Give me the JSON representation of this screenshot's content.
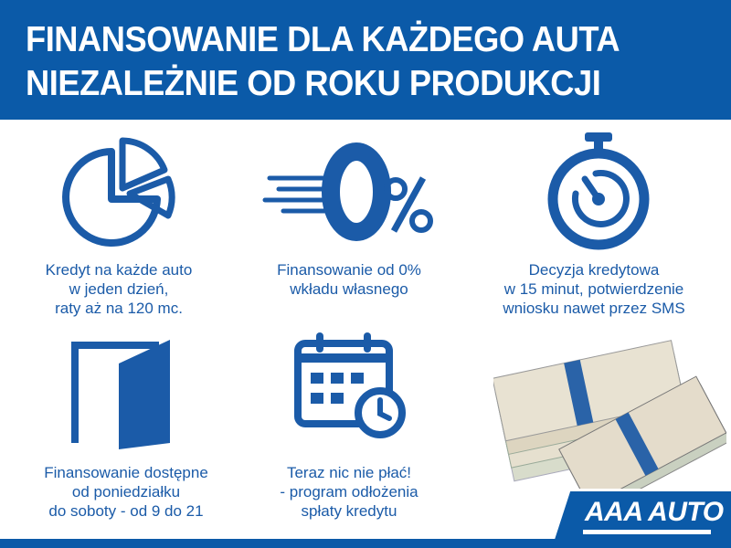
{
  "header": {
    "line1": "FINANSOWANIE DLA KAŻDEGO AUTA",
    "line2": "NIEZALEŻNIE OD ROKU PRODUKCJI"
  },
  "features": [
    {
      "icon": "pie-chart-icon",
      "lines": [
        "Kredyt na każde auto",
        "w jeden dzień,",
        "raty aż na 120 mc."
      ]
    },
    {
      "icon": "zero-percent-icon",
      "lines": [
        "Finansowanie od 0%",
        "wkładu własnego"
      ]
    },
    {
      "icon": "stopwatch-icon",
      "lines": [
        "Decyzja kredytowa",
        "w 15 minut, potwierdzenie",
        "wniosku nawet przez SMS"
      ]
    },
    {
      "icon": "door-icon",
      "lines": [
        "Finansowanie dostępne",
        "od poniedziałku",
        "do soboty - od 9 do 21"
      ]
    },
    {
      "icon": "calendar-clock-icon",
      "lines": [
        "Teraz nic nie płać!",
        "- program odłożenia",
        "spłaty kredytu"
      ]
    }
  ],
  "logo": "AAA AUTO",
  "colors": {
    "brand_blue": "#0b5aa8",
    "text_blue": "#1b5ba8"
  }
}
